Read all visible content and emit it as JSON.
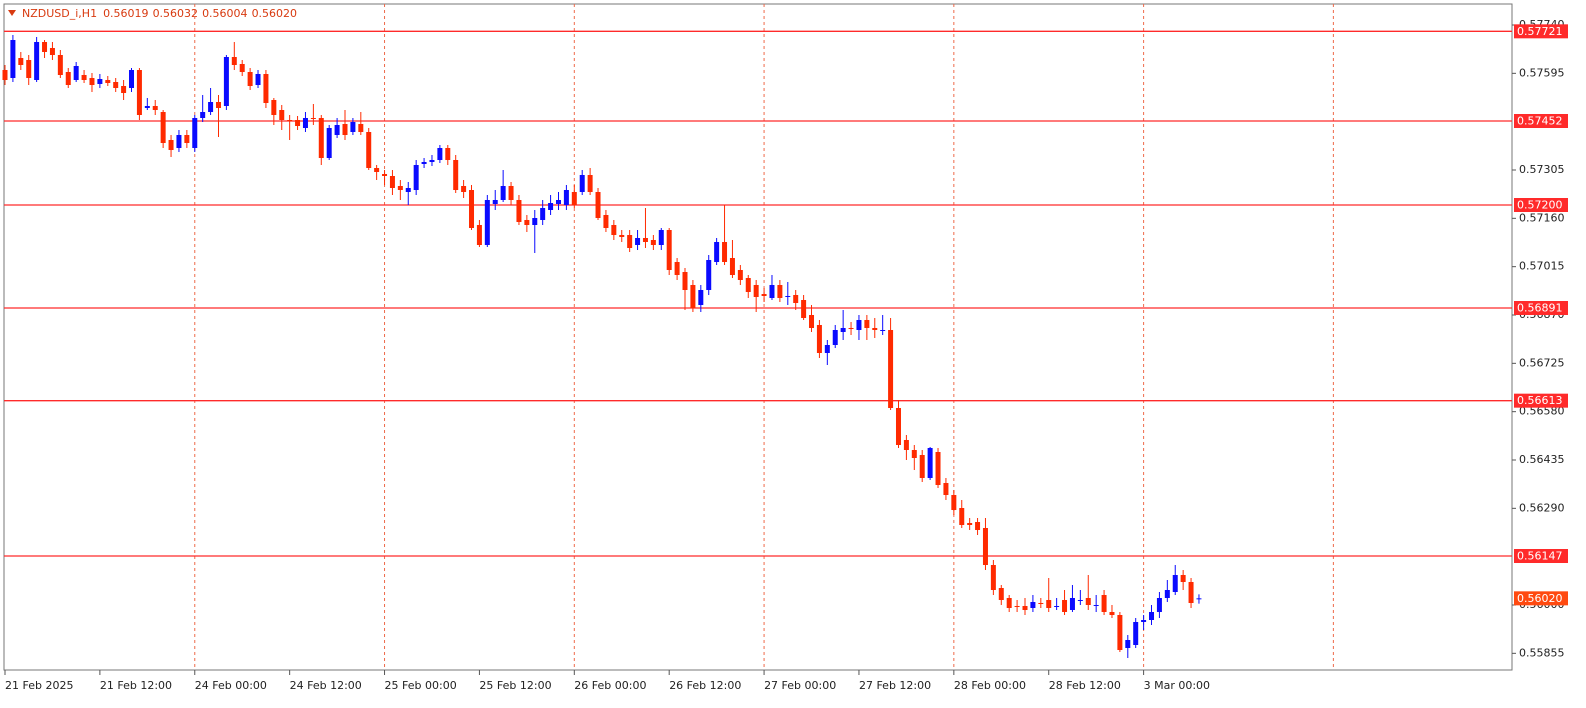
{
  "chart_data": {
    "type": "candlestick",
    "title": "NZDUSD_i,H1",
    "last_close_label": "0.56020",
    "categories": [
      "21 Feb 2025",
      null,
      null,
      null,
      null,
      null,
      null,
      null,
      null,
      null,
      null,
      null,
      "21 Feb 12:00",
      null,
      null,
      null,
      null,
      null,
      null,
      null,
      null,
      null,
      null,
      null,
      "24 Feb 00:00",
      null,
      null,
      null,
      null,
      null,
      null,
      null,
      null,
      null,
      null,
      null,
      "24 Feb 12:00",
      null,
      null,
      null,
      null,
      null,
      null,
      null,
      null,
      null,
      null,
      null,
      "25 Feb 00:00",
      null,
      null,
      null,
      null,
      null,
      null,
      null,
      null,
      null,
      null,
      null,
      "25 Feb 12:00",
      null,
      null,
      null,
      null,
      null,
      null,
      null,
      null,
      null,
      null,
      null,
      "26 Feb 00:00",
      null,
      null,
      null,
      null,
      null,
      null,
      null,
      null,
      null,
      null,
      null,
      "26 Feb 12:00",
      null,
      null,
      null,
      null,
      null,
      null,
      null,
      null,
      null,
      null,
      null,
      "27 Feb 00:00",
      null,
      null,
      null,
      null,
      null,
      null,
      null,
      null,
      null,
      null,
      null,
      "27 Feb 12:00",
      null,
      null,
      null,
      null,
      null,
      null,
      null,
      null,
      null,
      null,
      null,
      "28 Feb 00:00",
      null,
      null,
      null,
      null,
      null,
      null,
      null,
      null,
      null,
      null,
      null,
      "28 Feb 12:00",
      null,
      null,
      null,
      null,
      null,
      null,
      null,
      null,
      null,
      null,
      null,
      "3 Mar 00:00",
      null,
      null,
      null,
      null,
      null,
      null,
      null
    ],
    "open": [
      0.57605,
      0.57581,
      0.57641,
      0.57635,
      0.57575,
      0.57689,
      0.57671,
      0.5765,
      0.57599,
      0.57575,
      0.5759,
      0.57581,
      0.57563,
      0.57575,
      0.57569,
      0.57557,
      0.57551,
      0.57605,
      0.57491,
      0.57497,
      0.57479,
      0.57395,
      0.57371,
      0.5741,
      0.57371,
      0.57461,
      0.57479,
      0.57509,
      0.57497,
      0.57644,
      0.57623,
      0.57599,
      0.5756,
      0.57593,
      0.57515,
      0.57485,
      0.57455,
      0.57455,
      0.57431,
      0.57461,
      0.57461,
      0.57341,
      0.5741,
      0.57443,
      0.57419,
      0.57443,
      0.57419,
      0.57311,
      0.57293,
      0.57287,
      0.57257,
      0.57239,
      0.57245,
      0.57323,
      0.57329,
      0.57335,
      0.57371,
      0.57335,
      0.57257,
      0.57245,
      0.5714,
      0.5708,
      0.57203,
      0.57215,
      0.57257,
      0.57215,
      0.57155,
      0.5714,
      0.57155,
      0.57185,
      0.57203,
      0.572,
      0.57239,
      0.57239,
      0.5729,
      0.57239,
      0.5717,
      0.5714,
      0.5711,
      0.5711,
      0.5708,
      0.57101,
      0.57095,
      0.5708,
      0.57125,
      0.57029,
      0.56999,
      0.5696,
      0.569,
      0.56945,
      0.57029,
      0.57089,
      0.57041,
      0.57005,
      0.56981,
      0.5696,
      0.56933,
      0.56921,
      0.5696,
      0.56927,
      0.5693,
      0.56915,
      0.5687,
      0.5684,
      0.56756,
      0.5678,
      0.56819,
      0.56831,
      0.56825,
      0.56855,
      0.56831,
      0.56825,
      0.56825,
      0.56591,
      0.56495,
      0.56465,
      0.5645,
      0.56381,
      0.56459,
      0.56366,
      0.5633,
      0.56291,
      0.56246,
      0.56249,
      0.56231,
      0.5612,
      0.56051,
      0.56021,
      0.55997,
      0.55997,
      0.55991,
      0.56006,
      0.56015,
      0.55997,
      0.56015,
      0.55985,
      0.56015,
      0.56021,
      0.56,
      0.5603,
      0.55979,
      0.5597,
      0.55871,
      0.5588,
      0.55949,
      0.55955,
      0.55979,
      0.56021,
      0.56039,
      0.5609,
      0.56069,
      0.56019
    ],
    "high": [
      0.5762,
      0.5771,
      0.57659,
      0.5765,
      0.57704,
      0.57695,
      0.57689,
      0.57665,
      0.57611,
      0.57629,
      0.57605,
      0.57596,
      0.57593,
      0.57587,
      0.57581,
      0.57575,
      0.57611,
      0.57611,
      0.57521,
      0.57515,
      0.57485,
      0.5741,
      0.57425,
      0.57425,
      0.5747,
      0.5753,
      0.57551,
      0.5753,
      0.5765,
      0.57689,
      0.57635,
      0.57611,
      0.57605,
      0.57605,
      0.57521,
      0.575,
      0.5747,
      0.57467,
      0.57479,
      0.57503,
      0.5747,
      0.5744,
      0.57461,
      0.57485,
      0.57461,
      0.57479,
      0.57431,
      0.5732,
      0.57305,
      0.57305,
      0.57275,
      0.57269,
      0.57335,
      0.57341,
      0.5735,
      0.5738,
      0.5738,
      0.5735,
      0.57275,
      0.5726,
      0.57155,
      0.5723,
      0.57245,
      0.57305,
      0.57269,
      0.5723,
      0.5717,
      0.57185,
      0.57215,
      0.5723,
      0.57239,
      0.5726,
      0.5726,
      0.57305,
      0.57311,
      0.57251,
      0.57185,
      0.57155,
      0.57125,
      0.57125,
      0.57125,
      0.57191,
      0.5711,
      0.57131,
      0.57131,
      0.57041,
      0.57011,
      0.56975,
      0.5696,
      0.5705,
      0.57101,
      0.572,
      0.57095,
      0.5702,
      0.5699,
      0.56975,
      0.56951,
      0.5699,
      0.56975,
      0.56969,
      0.56945,
      0.5693,
      0.569,
      0.56855,
      0.56795,
      0.5684,
      0.56885,
      0.56849,
      0.5687,
      0.5687,
      0.56861,
      0.5687,
      0.56861,
      0.56615,
      0.5651,
      0.5648,
      0.56465,
      0.56474,
      0.56471,
      0.56381,
      0.56345,
      0.56315,
      0.56261,
      0.56261,
      0.56261,
      0.56135,
      0.5606,
      0.5603,
      0.56015,
      0.56021,
      0.5603,
      0.56021,
      0.56081,
      0.56021,
      0.56045,
      0.5606,
      0.56045,
      0.5609,
      0.5603,
      0.56045,
      0.56,
      0.55979,
      0.5591,
      0.55961,
      0.5597,
      0.56,
      0.56039,
      0.56075,
      0.5612,
      0.56105,
      0.56081,
      0.56032
    ],
    "low": [
      0.5756,
      0.57569,
      0.57605,
      0.5756,
      0.57569,
      0.57641,
      0.57635,
      0.57581,
      0.57551,
      0.57569,
      0.57566,
      0.57539,
      0.57551,
      0.57557,
      0.57539,
      0.57515,
      0.57539,
      0.57455,
      0.57485,
      0.5747,
      0.57371,
      0.57344,
      0.57359,
      0.57371,
      0.57359,
      0.57449,
      0.5747,
      0.57404,
      0.57485,
      0.57605,
      0.57587,
      0.57545,
      0.57551,
      0.57491,
      0.5744,
      0.57425,
      0.57395,
      0.57425,
      0.57419,
      0.5744,
      0.5732,
      0.57335,
      0.57401,
      0.57395,
      0.5741,
      0.5741,
      0.57305,
      0.57275,
      0.5726,
      0.5723,
      0.57215,
      0.572,
      0.5723,
      0.57311,
      0.57317,
      0.57326,
      0.5732,
      0.57236,
      0.57221,
      0.57125,
      0.57074,
      0.57074,
      0.57185,
      0.57209,
      0.572,
      0.5714,
      0.57119,
      0.57056,
      0.5714,
      0.5717,
      0.57185,
      0.57185,
      0.57191,
      0.5723,
      0.5723,
      0.57155,
      0.57119,
      0.57095,
      0.57089,
      0.57059,
      0.57065,
      0.57071,
      0.57065,
      0.57065,
      0.5699,
      0.56975,
      0.56885,
      0.56879,
      0.56879,
      0.5693,
      0.5702,
      0.5702,
      0.56981,
      0.5696,
      0.56921,
      0.56879,
      0.56909,
      0.56915,
      0.56909,
      0.569,
      0.56885,
      0.56855,
      0.56819,
      0.56741,
      0.5672,
      0.56771,
      0.56795,
      0.5681,
      0.56795,
      0.56795,
      0.56801,
      0.5681,
      0.56585,
      0.56471,
      0.56435,
      0.56405,
      0.56369,
      0.56375,
      0.56351,
      0.56315,
      0.5627,
      0.56231,
      0.56225,
      0.5621,
      0.56105,
      0.5603,
      0.56,
      0.55979,
      0.55979,
      0.5597,
      0.55979,
      0.55991,
      0.55979,
      0.55985,
      0.5597,
      0.55979,
      0.56,
      0.55985,
      0.55979,
      0.5597,
      0.55961,
      0.55859,
      0.55841,
      0.55871,
      0.55925,
      0.5594,
      0.55961,
      0.56009,
      0.5603,
      0.56045,
      0.55991,
      0.56004
    ],
    "close": [
      0.57575,
      0.57695,
      0.5762,
      0.57581,
      0.57689,
      0.57659,
      0.5765,
      0.5759,
      0.5756,
      0.57617,
      0.57575,
      0.5756,
      0.57578,
      0.57566,
      0.57551,
      0.57536,
      0.57605,
      0.5747,
      0.57497,
      0.57485,
      0.57386,
      0.57365,
      0.5741,
      0.57386,
      0.57461,
      0.57479,
      0.57509,
      0.57491,
      0.57644,
      0.5762,
      0.57599,
      0.57557,
      0.57593,
      0.57506,
      0.5747,
      0.57455,
      0.57452,
      0.57437,
      0.57461,
      0.57458,
      0.57341,
      0.57431,
      0.5744,
      0.5741,
      0.57449,
      0.57419,
      0.57311,
      0.57299,
      0.57287,
      0.57251,
      0.57245,
      0.57251,
      0.5732,
      0.57329,
      0.57335,
      0.57371,
      0.57335,
      0.57245,
      0.57239,
      0.57131,
      0.5708,
      0.57215,
      0.57215,
      0.57257,
      0.57215,
      0.57149,
      0.5714,
      0.57161,
      0.57191,
      0.57206,
      0.57215,
      0.57245,
      0.572,
      0.5729,
      0.57239,
      0.57161,
      0.57131,
      0.5711,
      0.57104,
      0.57071,
      0.57101,
      0.57089,
      0.5708,
      0.57125,
      0.57005,
      0.5699,
      0.56945,
      0.56891,
      0.56945,
      0.57035,
      0.57089,
      0.57029,
      0.5699,
      0.56975,
      0.56939,
      0.56924,
      0.56927,
      0.5696,
      0.56921,
      0.56927,
      0.56906,
      0.56861,
      0.56831,
      0.56756,
      0.5678,
      0.56825,
      0.56831,
      0.56828,
      0.56855,
      0.56831,
      0.56825,
      0.56825,
      0.56591,
      0.5648,
      0.56465,
      0.56441,
      0.56381,
      0.56471,
      0.5636,
      0.5633,
      0.56285,
      0.5624,
      0.5624,
      0.56225,
      0.5612,
      0.56045,
      0.56015,
      0.55991,
      0.55994,
      0.55985,
      0.56009,
      0.56003,
      0.55991,
      0.55997,
      0.55979,
      0.56021,
      0.56015,
      0.56,
      0.56,
      0.55979,
      0.5597,
      0.55865,
      0.55895,
      0.55949,
      0.55955,
      0.55979,
      0.56021,
      0.56045,
      0.5609,
      0.56069,
      0.56006,
      0.5602
    ],
    "up_color": "#0a0aff",
    "down_color": "#ff2a00",
    "ylim": [
      0.55805,
      0.57803
    ],
    "yticks": [
      {
        "value": 0.5774,
        "label": "0.57740"
      },
      0.57595,
      0.57305,
      {
        "value": 0.5716,
        "label": "0.57160"
      },
      0.57015,
      {
        "value": 0.5687,
        "label": "0.56870"
      },
      0.56725,
      {
        "value": 0.5658,
        "label": "0.56580"
      },
      0.56435,
      {
        "value": 0.5629,
        "label": "0.56290"
      },
      {
        "value": 0.56,
        "label": "0.56000"
      },
      0.55855
    ],
    "levels": [
      0.57721,
      0.57452,
      {
        "value": 0.572,
        "label": "0.57200"
      },
      0.56891,
      0.56613,
      0.56147
    ],
    "level_color": "#ff2a2a",
    "price_color": "#ff4a10",
    "grid_color": "#ee6a4a"
  }
}
